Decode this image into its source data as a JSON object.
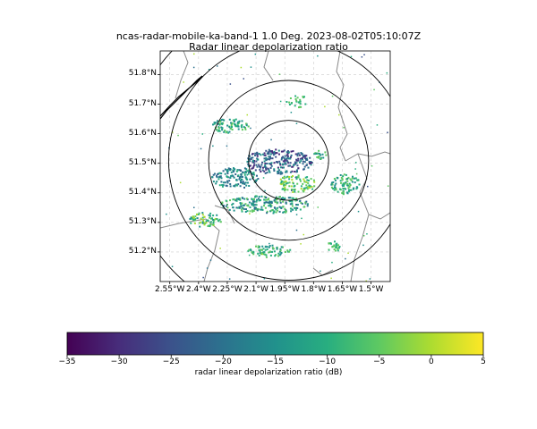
{
  "figure": {
    "title_line1": "ncas-radar-mobile-ka-band-1 1.0 Deg. 2023-08-02T05:10:07Z",
    "title_line2": "Radar linear depolarization ratio"
  },
  "map": {
    "lon_range": [
      -2.6,
      -1.4
    ],
    "lat_range": [
      51.1,
      51.88
    ],
    "lat_ticks": [
      "51.8°N",
      "51.7°N",
      "51.6°N",
      "51.5°N",
      "51.4°N",
      "51.3°N",
      "51.2°N"
    ],
    "lat_values": [
      51.8,
      51.7,
      51.6,
      51.5,
      51.4,
      51.3,
      51.2
    ],
    "lon_ticks": [
      "2.55°W",
      "2.4°W",
      "2.25°W",
      "2.1°W",
      "1.95°W",
      "1.8°W",
      "1.65°W",
      "1.5°W"
    ],
    "lon_values": [
      -2.55,
      -2.4,
      -2.25,
      -2.1,
      -1.95,
      -1.8,
      -1.65,
      -1.5
    ],
    "radar_center": [
      -1.93,
      51.51
    ],
    "range_rings_km": [
      15,
      30,
      45,
      60
    ],
    "gridlines": "dashed",
    "colors": {
      "rings": "#000000",
      "borders": "#808080",
      "coast": "#000000",
      "grid": "#cccccc"
    }
  },
  "colorbar": {
    "label": "radar linear depolarization ratio (dB)",
    "ticks": [
      "−35",
      "−30",
      "−25",
      "−20",
      "−15",
      "−10",
      "−5",
      "0",
      "5"
    ],
    "tick_values": [
      -35,
      -30,
      -25,
      -20,
      -15,
      -10,
      -5,
      0,
      5
    ],
    "range": [
      -35,
      5
    ],
    "colormap": "viridis"
  }
}
